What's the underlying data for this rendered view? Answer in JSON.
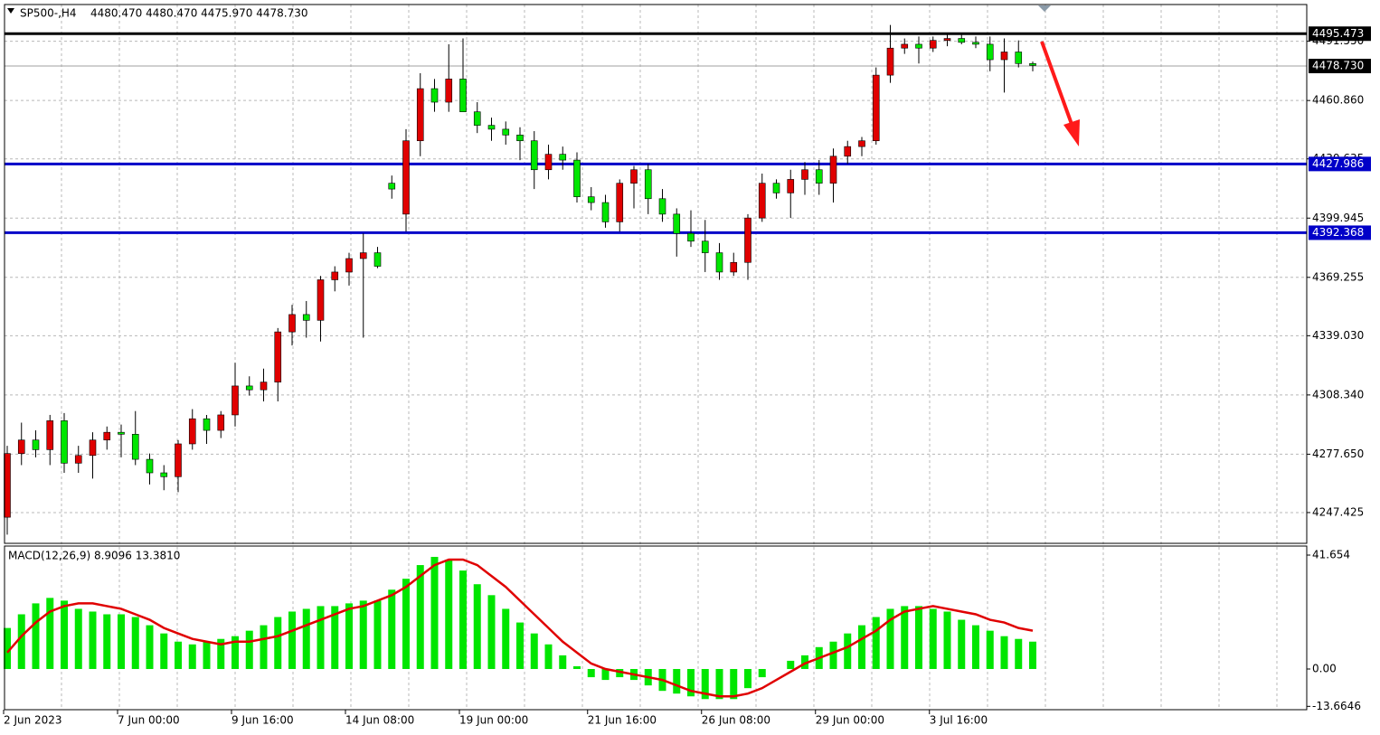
{
  "chart_data": [
    {
      "type": "candlestick",
      "title": "SP500-,H4",
      "subtitle": "4480.470 4480.470 4475.970 4478.730",
      "categories": [
        "2 Jun 2023",
        null,
        null,
        null,
        null,
        null,
        null,
        null,
        "7 Jun 00:00",
        null,
        null,
        null,
        null,
        null,
        null,
        null,
        "9 Jun 16:00",
        null,
        null,
        null,
        null,
        null,
        null,
        null,
        "14 Jun 08:00",
        null,
        null,
        null,
        null,
        null,
        null,
        null,
        "19 Jun 00:00",
        null,
        null,
        null,
        null,
        null,
        null,
        null,
        null,
        "21 Jun 16:00",
        null,
        null,
        null,
        null,
        null,
        null,
        null,
        "26 Jun 08:00",
        null,
        null,
        null,
        null,
        null,
        null,
        null,
        "29 Jun 00:00",
        null,
        null,
        null,
        null,
        null,
        null,
        null,
        "3 Jul 16:00",
        null,
        null,
        null,
        null,
        null,
        null,
        null
      ],
      "open": [
        4245,
        4278,
        4285,
        4280,
        4295,
        4273,
        4277,
        4285,
        4289,
        4288,
        4275,
        4268,
        4266,
        4283,
        4296,
        4290,
        4298,
        4313,
        4311,
        4315,
        4341,
        4350,
        4347,
        4368,
        4372,
        4379,
        4382,
        4418,
        4402,
        4440,
        4467,
        4460,
        4472,
        4455,
        4448,
        4446,
        4443,
        4440,
        4425,
        4433,
        4430,
        4411,
        4408,
        4398,
        4418,
        4425,
        4410,
        4402,
        4392,
        4388,
        4382,
        4372,
        4377,
        4400,
        4418,
        4413,
        4420,
        4425,
        4418,
        4432,
        4437,
        4440,
        4474,
        4488,
        4490,
        4488,
        4492,
        4493,
        4491,
        4490,
        4482,
        4486,
        4480
      ],
      "high": [
        4282,
        4294,
        4290,
        4298,
        4299,
        4282,
        4289,
        4292,
        4293,
        4300,
        4278,
        4272,
        4285,
        4301,
        4298,
        4300,
        4325,
        4318,
        4322,
        4343,
        4355,
        4357,
        4370,
        4375,
        4382,
        4392,
        4385,
        4422,
        4446,
        4475,
        4472,
        4490,
        4493,
        4460,
        4452,
        4450,
        4447,
        4445,
        4438,
        4437,
        4434,
        4416,
        4412,
        4420,
        4427,
        4428,
        4415,
        4405,
        4404,
        4399,
        4387,
        4382,
        4402,
        4423,
        4420,
        4425,
        4429,
        4430,
        4436,
        4440,
        4442,
        4478,
        4500,
        4493,
        4494,
        4494,
        4496,
        4496,
        4494,
        4494,
        4493,
        4492,
        4481
      ],
      "low": [
        4236,
        4272,
        4276,
        4272,
        4268,
        4268,
        4265,
        4280,
        4276,
        4272,
        4262,
        4259,
        4258,
        4280,
        4283,
        4286,
        4292,
        4308,
        4305,
        4305,
        4334,
        4338,
        4336,
        4362,
        4365,
        4338,
        4374,
        4410,
        4393,
        4432,
        4455,
        4455,
        4455,
        4444,
        4440,
        4438,
        4430,
        4415,
        4420,
        4425,
        4408,
        4404,
        4395,
        4393,
        4405,
        4402,
        4398,
        4380,
        4385,
        4372,
        4368,
        4370,
        4368,
        4398,
        4410,
        4400,
        4412,
        4412,
        4408,
        4428,
        4432,
        4438,
        4470,
        4485,
        4480,
        4486,
        4489,
        4490,
        4488,
        4476,
        4465,
        4478,
        4476
      ],
      "close": [
        4278,
        4285,
        4280,
        4295,
        4273,
        4277,
        4285,
        4289,
        4288,
        4275,
        4268,
        4266,
        4283,
        4296,
        4290,
        4298,
        4313,
        4311,
        4315,
        4341,
        4350,
        4347,
        4368,
        4372,
        4379,
        4382,
        4375,
        4415,
        4440,
        4467,
        4460,
        4472,
        4455,
        4448,
        4446,
        4443,
        4440,
        4425,
        4433,
        4430,
        4411,
        4408,
        4398,
        4418,
        4425,
        4410,
        4402,
        4392,
        4388,
        4382,
        4372,
        4377,
        4400,
        4418,
        4413,
        4420,
        4425,
        4418,
        4432,
        4437,
        4440,
        4474,
        4488,
        4490,
        4488,
        4492,
        4493,
        4491,
        4490,
        4482,
        4486,
        4480,
        4479
      ],
      "up_color": "#e00000",
      "down_color": "#00e600",
      "ylim": [
        4231.48,
        4510.58
      ],
      "yticks": [
        {
          "value": 4247.425,
          "label": "4247.425"
        },
        {
          "value": 4277.65,
          "label": "4277.650"
        },
        {
          "value": 4308.34,
          "label": "4308.340"
        },
        {
          "value": 4339.03,
          "label": "4339.030"
        },
        4369.255,
        4399.945,
        4430.635,
        {
          "value": 4460.86,
          "label": "4460.860"
        },
        {
          "value": 4491.55,
          "label": "4491.550"
        }
      ],
      "grid": true,
      "hlines": [
        {
          "value": 4495.473,
          "color": "#000000"
        },
        {
          "value": 4427.986,
          "color": "#0000c8"
        },
        {
          "value": 4392.368,
          "color": "#0000c8"
        }
      ],
      "current_price": {
        "value": 4478.73,
        "label": "4478.730"
      }
    },
    {
      "type": "macd",
      "title": "MACD(12,26,9) 8.9096 13.3810",
      "histogram": {
        "color": "#00e600",
        "values": [
          15,
          20,
          24,
          26,
          25,
          22,
          21,
          20,
          20,
          19,
          16,
          13,
          10,
          9,
          10,
          11,
          12,
          14,
          16,
          19,
          21,
          22,
          23,
          23,
          24,
          25,
          25,
          29,
          33,
          38,
          41,
          40,
          36,
          31,
          27,
          22,
          17,
          13,
          9,
          5,
          1,
          -3,
          -4,
          -3,
          -4,
          -6,
          -8,
          -9,
          -10,
          -11,
          -11,
          -11,
          -7,
          -3,
          0,
          3,
          5,
          8,
          10,
          13,
          16,
          19,
          22,
          23,
          23,
          22,
          21,
          18,
          16,
          14,
          12,
          11,
          10
        ]
      },
      "signal": {
        "color": "#e00000",
        "values": [
          6,
          12,
          17,
          21,
          23,
          24,
          24,
          23,
          22,
          20,
          18,
          15,
          13,
          11,
          10,
          9,
          10,
          10,
          11,
          12,
          14,
          16,
          18,
          20,
          22,
          23,
          25,
          27,
          30,
          34,
          38,
          40,
          40,
          38,
          34,
          30,
          25,
          20,
          15,
          10,
          6,
          2,
          0,
          -1,
          -2,
          -3,
          -4,
          -6,
          -8,
          -9,
          -10,
          -10,
          -9,
          -7,
          -4,
          -1,
          2,
          4,
          6,
          8,
          11,
          14,
          18,
          21,
          22,
          23,
          22,
          21,
          20,
          18,
          17,
          15,
          14
        ]
      },
      "ylim": [
        -14.88,
        44.96
      ],
      "yticks": [
        41.654,
        {
          "value": 0,
          "label": "0.00"
        },
        -13.6646
      ]
    }
  ]
}
